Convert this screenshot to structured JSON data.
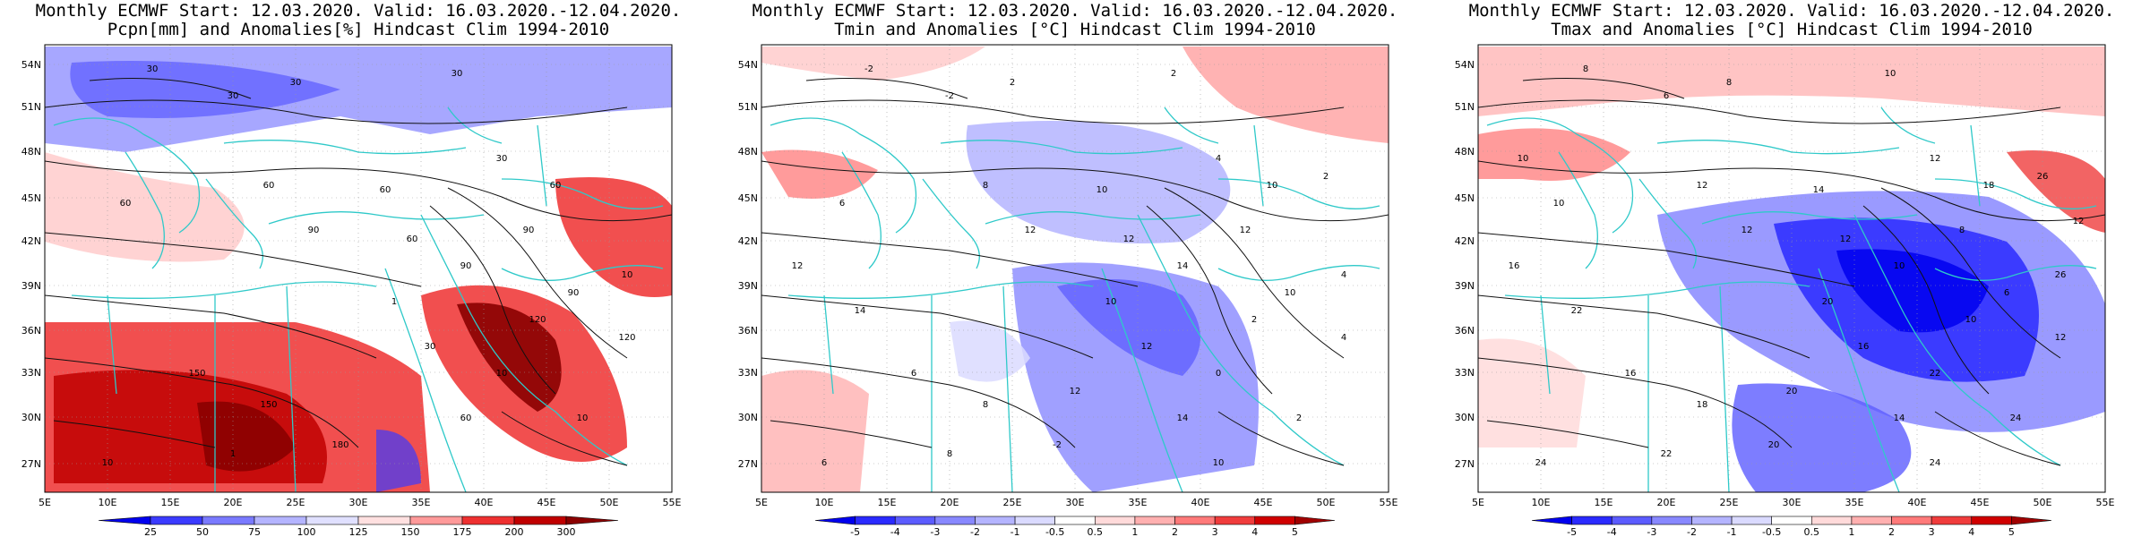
{
  "panels": [
    {
      "title_line1": "Monthly ECMWF Start: 12.03.2020. Valid: 16.03.2020.-12.04.2020.",
      "title_line2": "Pcpn[mm] and Anomalies[%] Hindcast Clim 1994-2010",
      "colorbar_labels": [
        "25",
        "50",
        "75",
        "100",
        "125",
        "150",
        "175",
        "200",
        "300"
      ],
      "colorbar_colors": [
        "#0000ee",
        "#3b3bff",
        "#7a7aff",
        "#b4b4ff",
        "#e0e0ff",
        "#ffe0e0",
        "#ff9a9a",
        "#ee3030",
        "#c00000",
        "#8a0000"
      ],
      "contour_labels": [
        "30",
        "30",
        "30",
        "30",
        "30",
        "60",
        "60",
        "60",
        "60",
        "90",
        "90",
        "90",
        "120",
        "120",
        "150",
        "150",
        "180",
        "10",
        "10",
        "10",
        "10",
        "1",
        "1",
        "30",
        "60",
        "90",
        "60"
      ]
    },
    {
      "title_line1": "Monthly ECMWF Start: 12.03.2020. Valid: 16.03.2020.-12.04.2020.",
      "title_line2": "Tmin and Anomalies [°C] Hindcast Clim 1994-2010",
      "colorbar_labels": [
        "-5",
        "-4",
        "-3",
        "-2",
        "-1",
        "-0.5",
        "0.5",
        "1",
        "2",
        "3",
        "4",
        "5"
      ],
      "colorbar_colors": [
        "#0000ee",
        "#2a2aff",
        "#5c5cff",
        "#8888ff",
        "#b4b4ff",
        "#dadaff",
        "#ffffff",
        "#ffdada",
        "#ffb0b0",
        "#ff7a7a",
        "#f03c3c",
        "#d00000",
        "#a00000"
      ],
      "contour_labels": [
        "-2",
        "-2",
        "2",
        "2",
        "4",
        "6",
        "8",
        "10",
        "12",
        "14",
        "12",
        "10",
        "2",
        "4",
        "6",
        "8",
        "-2",
        "0",
        "2",
        "4",
        "6",
        "8",
        "10",
        "12",
        "14",
        "12",
        "10",
        "12",
        "14",
        "12",
        "10",
        "2"
      ]
    },
    {
      "title_line1": "Monthly ECMWF Start: 12.03.2020. Valid: 16.03.2020.-12.04.2020.",
      "title_line2": "Tmax and Anomalies [°C] Hindcast Clim 1994-2010",
      "colorbar_labels": [
        "-5",
        "-4",
        "-3",
        "-2",
        "-1",
        "-0.5",
        "0.5",
        "1",
        "2",
        "3",
        "4",
        "5"
      ],
      "colorbar_colors": [
        "#0000ee",
        "#2a2aff",
        "#5c5cff",
        "#8888ff",
        "#b4b4ff",
        "#dadaff",
        "#ffffff",
        "#ffdada",
        "#ffb0b0",
        "#ff7a7a",
        "#f03c3c",
        "#d00000",
        "#a00000"
      ],
      "contour_labels": [
        "8",
        "6",
        "8",
        "10",
        "12",
        "10",
        "12",
        "14",
        "12",
        "10",
        "8",
        "6",
        "10",
        "12",
        "16",
        "18",
        "20",
        "22",
        "24",
        "26",
        "24",
        "22",
        "20",
        "16",
        "14",
        "12",
        "18",
        "16",
        "22",
        "20",
        "24",
        "26",
        "12",
        "10"
      ]
    }
  ],
  "lat_labels": [
    "54N",
    "51N",
    "48N",
    "45N",
    "42N",
    "39N",
    "36N",
    "33N",
    "30N",
    "27N"
  ],
  "lon_labels": [
    "5E",
    "10E",
    "15E",
    "20E",
    "25E",
    "30E",
    "35E",
    "40E",
    "45E",
    "50E",
    "55E"
  ]
}
